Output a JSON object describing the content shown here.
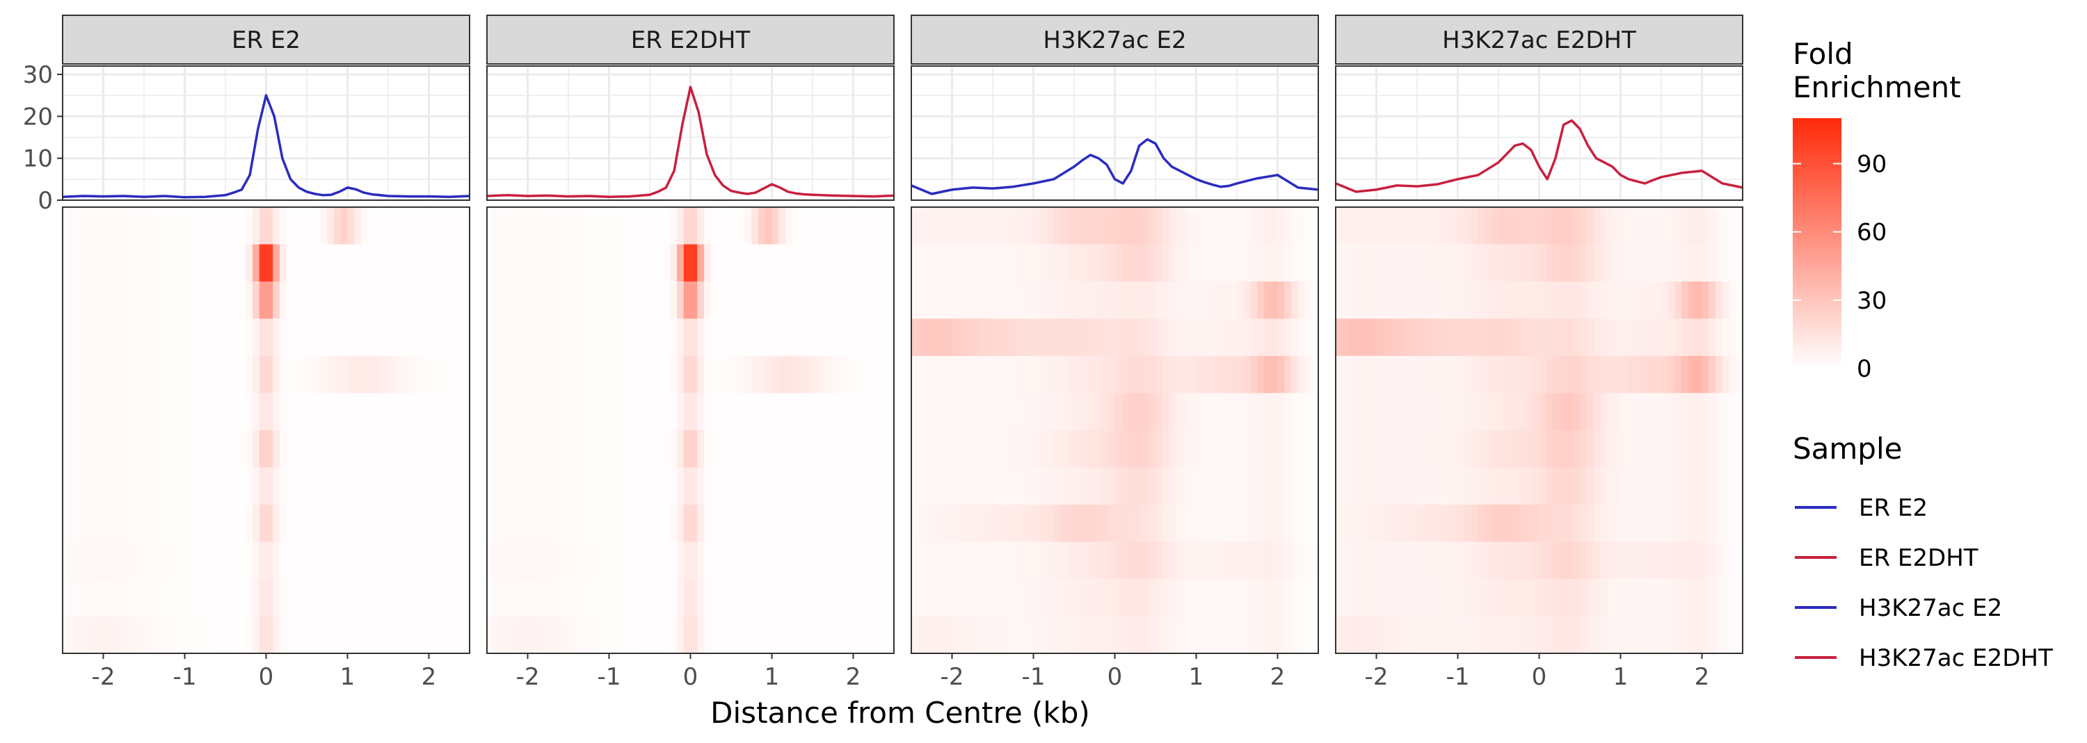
{
  "chart_data": {
    "type": "line",
    "facets": [
      "ER E2",
      "ER E2DHT",
      "H3K27ac E2",
      "H3K27ac E2DHT"
    ],
    "xlabel": "Distance from Centre (kb)",
    "xlim": [
      -2.5,
      2.5
    ],
    "x_ticks": [
      -2,
      -1,
      0,
      1,
      2
    ],
    "x_tick_labels": [
      "-2",
      "-1",
      "0",
      "1",
      "2"
    ],
    "profile": {
      "ylabel": "",
      "ylim": [
        0,
        32
      ],
      "y_ticks": [
        0,
        10,
        20,
        30
      ],
      "y_tick_labels": [
        "0",
        "10",
        "20",
        "30"
      ],
      "x": [
        -2.5,
        -2.25,
        -2.0,
        -1.75,
        -1.5,
        -1.25,
        -1.0,
        -0.75,
        -0.5,
        -0.4,
        -0.3,
        -0.2,
        -0.1,
        0.0,
        0.1,
        0.2,
        0.3,
        0.4,
        0.5,
        0.6,
        0.7,
        0.8,
        0.9,
        1.0,
        1.1,
        1.2,
        1.3,
        1.4,
        1.5,
        1.75,
        2.0,
        2.25,
        2.5
      ],
      "series": [
        {
          "name": "ER E2",
          "facet": 0,
          "color": "#2b2bbf",
          "values": [
            0.8,
            1.0,
            0.9,
            1.0,
            0.8,
            1.0,
            0.7,
            0.8,
            1.2,
            1.8,
            2.5,
            6,
            17,
            25,
            20,
            10,
            5,
            3,
            2,
            1.5,
            1.2,
            1.3,
            2,
            3,
            2.6,
            1.8,
            1.4,
            1.2,
            1.0,
            0.9,
            0.9,
            0.8,
            1.0
          ]
        },
        {
          "name": "ER E2DHT",
          "facet": 1,
          "color": "#c8203f",
          "values": [
            1.0,
            1.2,
            1.0,
            1.1,
            0.9,
            1.0,
            0.8,
            0.9,
            1.3,
            2.0,
            3.0,
            7,
            18,
            27,
            21,
            11,
            6,
            3.5,
            2.2,
            1.8,
            1.5,
            1.8,
            2.8,
            3.8,
            3.0,
            2.0,
            1.6,
            1.4,
            1.3,
            1.1,
            1.0,
            0.9,
            1.1
          ]
        },
        {
          "name": "H3K27ac E2",
          "facet": 2,
          "color": "#2b2bbf",
          "values": [
            3.5,
            1.5,
            2.5,
            3,
            2.8,
            3.2,
            4,
            5,
            8,
            9.5,
            10.8,
            10,
            8.5,
            5,
            4,
            7,
            13,
            14.5,
            13.5,
            10,
            8,
            7,
            6,
            5,
            4.3,
            3.7,
            3.2,
            3.4,
            4,
            5.2,
            6,
            3,
            2.5
          ]
        },
        {
          "name": "H3K27ac E2DHT",
          "facet": 3,
          "color": "#c8203f",
          "values": [
            4,
            2,
            2.5,
            3.5,
            3.3,
            3.8,
            5,
            6,
            9,
            11,
            13,
            13.5,
            12,
            8,
            5,
            10,
            18,
            19,
            17,
            13,
            10,
            9,
            8,
            6,
            5,
            4.5,
            4,
            4.8,
            5.5,
            6.5,
            7,
            4,
            3
          ]
        }
      ]
    },
    "heatmap": {
      "rows": 12,
      "value_label": "Fold Enrichment",
      "scale_min": 0,
      "scale_max": 110,
      "low_color": "#ffffff",
      "high_color": "#ff2a0a",
      "peaks": [
        [
          {
            "c": 0,
            "w": 0.09,
            "rows": [
              20,
              110,
              55,
              15,
              20,
              12,
              25,
              12,
              20,
              10,
              12,
              15
            ]
          },
          {
            "c": 0.95,
            "w": 0.12,
            "rows": [
              22,
              0,
              0,
              0,
              0,
              0,
              0,
              0,
              0,
              0,
              0,
              0
            ]
          },
          {
            "c": 1.2,
            "w": 0.35,
            "rows": [
              0,
              0,
              0,
              0,
              10,
              0,
              0,
              0,
              0,
              0,
              0,
              0
            ]
          },
          {
            "c": -2.0,
            "w": 0.5,
            "rows": [
              2,
              2,
              2,
              2,
              2,
              2,
              2,
              2,
              2,
              3,
              2,
              5
            ]
          }
        ],
        [
          {
            "c": 0,
            "w": 0.09,
            "rows": [
              22,
              110,
              55,
              15,
              20,
              12,
              25,
              12,
              20,
              10,
              12,
              15
            ]
          },
          {
            "c": 0.95,
            "w": 0.12,
            "rows": [
              28,
              0,
              0,
              0,
              0,
              0,
              0,
              0,
              0,
              0,
              0,
              0
            ]
          },
          {
            "c": 1.2,
            "w": 0.35,
            "rows": [
              0,
              0,
              0,
              0,
              12,
              0,
              0,
              0,
              0,
              0,
              0,
              0
            ]
          },
          {
            "c": -2.0,
            "w": 0.5,
            "rows": [
              2,
              2,
              2,
              2,
              2,
              2,
              2,
              2,
              2,
              3,
              2,
              5
            ]
          }
        ],
        [
          {
            "c": -0.4,
            "w": 0.35,
            "rows": [
              18,
              8,
              6,
              12,
              8,
              6,
              10,
              6,
              18,
              8,
              6,
              5
            ]
          },
          {
            "c": 0.3,
            "w": 0.3,
            "rows": [
              20,
              18,
              8,
              12,
              15,
              22,
              20,
              15,
              12,
              16,
              10,
              8
            ]
          },
          {
            "c": 1.95,
            "w": 0.18,
            "rows": [
              5,
              4,
              30,
              8,
              25,
              4,
              4,
              4,
              4,
              4,
              4,
              4
            ]
          },
          {
            "c": 1.4,
            "w": 0.5,
            "rows": [
              3,
              3,
              5,
              6,
              15,
              3,
              3,
              3,
              3,
              6,
              3,
              3
            ]
          },
          {
            "c": -2.3,
            "w": 0.45,
            "rows": [
              5,
              3,
              3,
              25,
              3,
              3,
              3,
              3,
              3,
              3,
              3,
              6
            ]
          },
          {
            "c": -1.3,
            "w": 0.5,
            "rows": [
              5,
              3,
              3,
              15,
              3,
              3,
              3,
              3,
              8,
              3,
              3,
              3
            ]
          }
        ],
        [
          {
            "c": -0.4,
            "w": 0.35,
            "rows": [
              20,
              10,
              8,
              15,
              10,
              8,
              12,
              8,
              22,
              10,
              8,
              6
            ]
          },
          {
            "c": 0.35,
            "w": 0.3,
            "rows": [
              22,
              20,
              10,
              14,
              18,
              26,
              22,
              18,
              14,
              18,
              12,
              10
            ]
          },
          {
            "c": 1.95,
            "w": 0.18,
            "rows": [
              6,
              5,
              32,
              10,
              28,
              5,
              5,
              5,
              5,
              5,
              5,
              5
            ]
          },
          {
            "c": 1.4,
            "w": 0.5,
            "rows": [
              4,
              4,
              6,
              8,
              18,
              4,
              4,
              4,
              4,
              8,
              4,
              4
            ]
          },
          {
            "c": -2.3,
            "w": 0.45,
            "rows": [
              6,
              4,
              4,
              28,
              4,
              4,
              4,
              4,
              4,
              4,
              4,
              8
            ]
          },
          {
            "c": -1.3,
            "w": 0.5,
            "rows": [
              6,
              4,
              4,
              18,
              4,
              4,
              4,
              4,
              10,
              4,
              4,
              4
            ]
          }
        ]
      ]
    },
    "legends": {
      "fill": {
        "title_lines": [
          "Fold",
          "Enrichment"
        ],
        "ticks": [
          0,
          30,
          60,
          90
        ],
        "tick_labels": [
          "0",
          "30",
          "60",
          "90"
        ]
      },
      "color": {
        "title": "Sample",
        "entries": [
          {
            "label": "ER E2",
            "color": "#2b2bbf"
          },
          {
            "label": "ER E2DHT",
            "color": "#c8203f"
          },
          {
            "label": "H3K27ac E2",
            "color": "#2b2bbf"
          },
          {
            "label": "H3K27ac E2DHT",
            "color": "#c8203f"
          }
        ]
      }
    }
  }
}
